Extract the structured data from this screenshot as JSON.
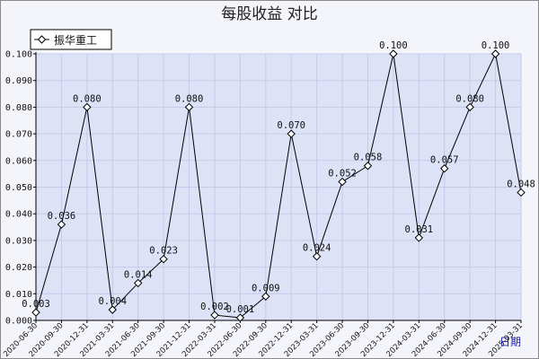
{
  "chart_data": {
    "type": "line",
    "title": "每股收益  对比",
    "xlabel": "日期",
    "ylabel": "",
    "ylim": [
      0,
      0.1
    ],
    "yticks": [
      "0.000",
      "0.010",
      "0.020",
      "0.030",
      "0.040",
      "0.050",
      "0.060",
      "0.070",
      "0.080",
      "0.090",
      "0.100"
    ],
    "categories": [
      "2020-06-30",
      "2020-09-30",
      "2020-12-31",
      "2021-03-31",
      "2021-06-30",
      "2021-09-30",
      "2021-12-31",
      "2022-03-31",
      "2022-06-30",
      "2022-09-30",
      "2022-12-31",
      "2023-03-31",
      "2023-06-30",
      "2023-09-30",
      "2023-12-31",
      "2024-03-31",
      "2024-06-30",
      "2024-09-30",
      "2024-12-31",
      "2025-03-31"
    ],
    "series": [
      {
        "name": "振华重工",
        "values": [
          0.003,
          0.036,
          0.08,
          0.004,
          0.014,
          0.023,
          0.08,
          0.002,
          0.001,
          0.009,
          0.07,
          0.024,
          0.052,
          0.058,
          0.1,
          0.031,
          0.057,
          0.08,
          0.1,
          0.048
        ],
        "labels": [
          "0.003",
          "0.036",
          "0.080",
          "0.004",
          "0.014",
          "0.023",
          "0.080",
          "0.002",
          "0.001",
          "0.009",
          "0.070",
          "0.024",
          "0.052",
          "0.058",
          "0.100",
          "0.031",
          "0.057",
          "0.080",
          "0.100",
          "0.048"
        ]
      }
    ],
    "grid": true,
    "legend": "top-left",
    "colors": {
      "plot_bg": "#dde2f6",
      "grid": "#c3cbe9",
      "line": "#000000",
      "marker_fill": "#ffffff"
    }
  }
}
